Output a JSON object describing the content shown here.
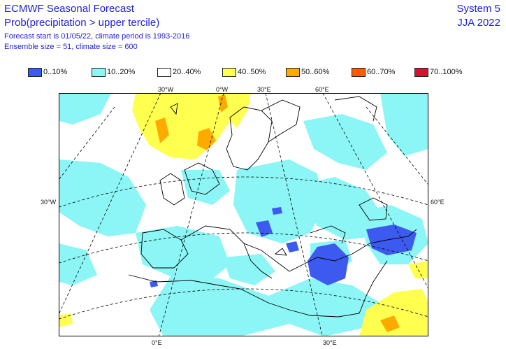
{
  "header": {
    "title": "ECMWF Seasonal Forecast",
    "subtitle": "Prob(precipitation > upper tercile)",
    "forecast_info": "Forecast start is 01/05/22, climate period is 1993-2016",
    "ensemble_info": "Ensemble size = 51, climate size = 600",
    "system": "System 5",
    "season": "JJA 2022"
  },
  "legend": [
    {
      "label": "0..10%",
      "color": "#3c5af0"
    },
    {
      "label": "10..20%",
      "color": "#8cf5f5"
    },
    {
      "label": "20..40%",
      "color": "#ffffff"
    },
    {
      "label": "40..50%",
      "color": "#ffff50"
    },
    {
      "label": "50..60%",
      "color": "#ffaa00"
    },
    {
      "label": "60..70%",
      "color": "#ff5a00"
    },
    {
      "label": "70..100%",
      "color": "#d21432"
    }
  ],
  "grid_labels": {
    "top": [
      "30°W",
      "0°W",
      "30°E",
      "60°E"
    ],
    "bottom": [
      "0°E",
      "30°E"
    ],
    "left": "30°W",
    "right": "60°E"
  },
  "colors": {
    "cyan": "#8cf5f5",
    "yellow": "#ffff50",
    "orange": "#ffaa00",
    "blue": "#3c5af0",
    "coast": "#000000",
    "grid": "#000000"
  }
}
